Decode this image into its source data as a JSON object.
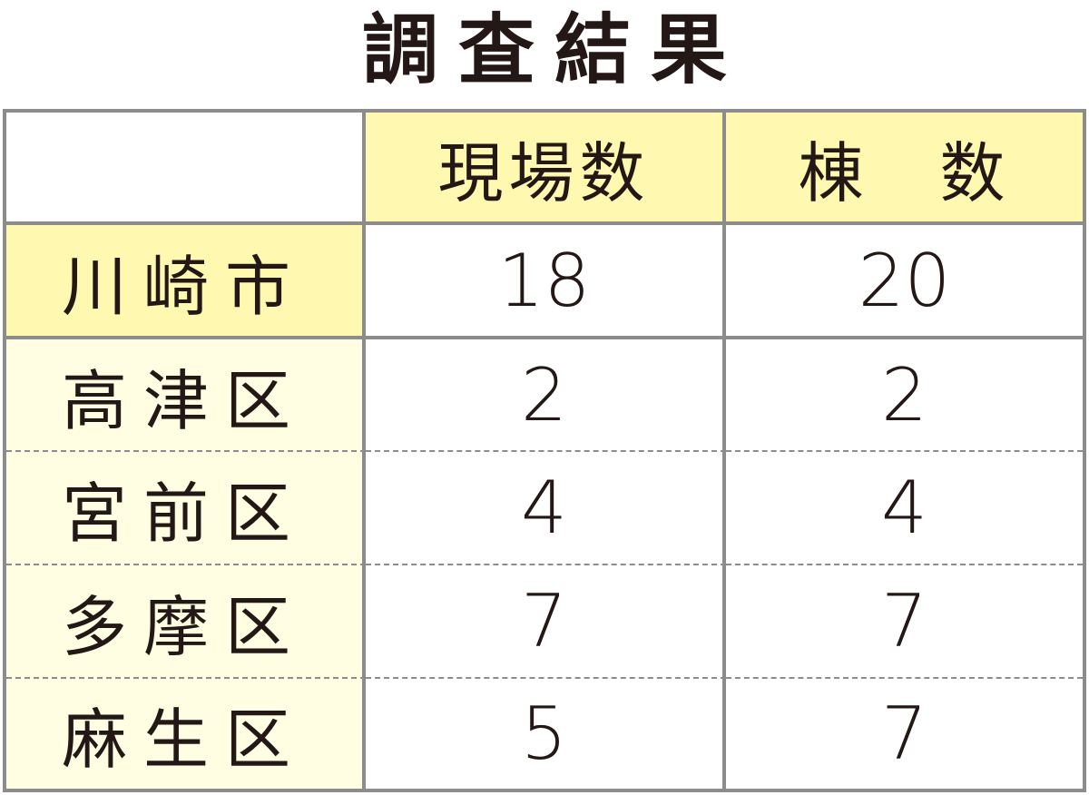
{
  "title": "調査結果",
  "columns": [
    "",
    "現場数",
    "棟　数"
  ],
  "rows": [
    {
      "name": "川崎市",
      "sites": "18",
      "buildings": "20"
    },
    {
      "name": "高津区",
      "sites": "2",
      "buildings": "2"
    },
    {
      "name": "宮前区",
      "sites": "4",
      "buildings": "4"
    },
    {
      "name": "多摩区",
      "sites": "7",
      "buildings": "7"
    },
    {
      "name": "麻生区",
      "sites": "5",
      "buildings": "7"
    }
  ],
  "colors": {
    "header_bg": "#fff8b0",
    "ward_bg": "#fffde2",
    "border": "#8c8c8c",
    "text": "#231815"
  }
}
